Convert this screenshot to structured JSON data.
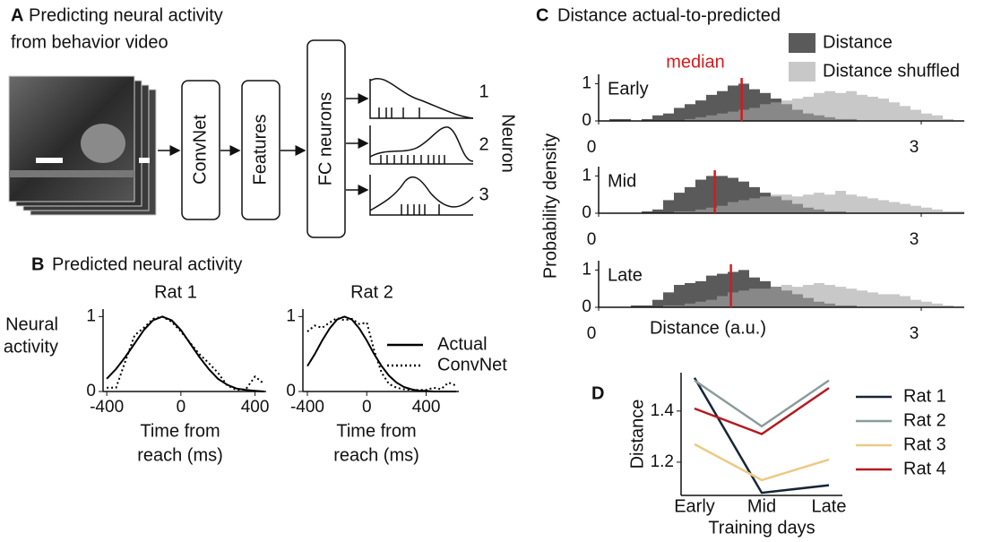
{
  "panel_a": {
    "letter": "A",
    "title": [
      "Predicting neural activity",
      "from behavior video"
    ],
    "boxes": [
      "ConvNet",
      "Features",
      "FC neurons"
    ],
    "outputs": [
      "1",
      "2",
      "3"
    ],
    "output_axis": "Neuron"
  },
  "panel_b": {
    "letter": "B",
    "title": "Predicted neural activity"
  },
  "panel_c": {
    "letter": "C",
    "title": "Distance actual-to-predicted",
    "y_label": "Probability density",
    "x_label": "Distance (a.u.)",
    "median_label": "median"
  },
  "panel_d": {
    "letter": "D"
  },
  "chart_data": [
    {
      "type": "line",
      "title": "Rat 1",
      "y_label": [
        "Neural",
        "activity"
      ],
      "x_label": [
        "Time from",
        "reach (ms)"
      ],
      "x": [
        -400,
        -350,
        -300,
        -250,
        -200,
        -150,
        -100,
        -50,
        0,
        50,
        100,
        150,
        200,
        250,
        300,
        350,
        400,
        450
      ],
      "series": [
        {
          "color": "#000000",
          "style": "solid",
          "values": [
            0.17,
            0.3,
            0.46,
            0.64,
            0.82,
            0.95,
            1.0,
            0.95,
            0.82,
            0.64,
            0.46,
            0.3,
            0.17,
            0.09,
            0.04,
            0.02,
            0.01,
            0.0
          ]
        },
        {
          "color": "#000000",
          "style": "dotted",
          "values": [
            0.05,
            0.05,
            0.4,
            0.75,
            0.85,
            0.97,
            1.0,
            0.93,
            0.8,
            0.65,
            0.5,
            0.38,
            0.25,
            0.08,
            0.02,
            0.03,
            0.2,
            0.1
          ]
        }
      ],
      "xlim": [
        -420,
        460
      ],
      "ylim": [
        0,
        1.1
      ],
      "xticks": [
        -400,
        0,
        400
      ],
      "yticks": [
        0,
        1
      ]
    },
    {
      "type": "line",
      "title": "Rat 2",
      "x_label": [
        "Time from",
        "reach (ms)"
      ],
      "x": [
        -400,
        -350,
        -300,
        -250,
        -200,
        -150,
        -100,
        -50,
        0,
        50,
        100,
        150,
        200,
        250,
        300,
        350,
        400,
        450,
        500,
        550,
        600
      ],
      "series": [
        {
          "name": "Actual",
          "color": "#000000",
          "style": "solid",
          "values": [
            0.34,
            0.5,
            0.68,
            0.84,
            0.96,
            1.0,
            0.96,
            0.84,
            0.68,
            0.5,
            0.34,
            0.21,
            0.12,
            0.06,
            0.03,
            0.01,
            0.01,
            0.0,
            0.0,
            0.0,
            0.0
          ]
        },
        {
          "name": "ConvNet",
          "color": "#000000",
          "style": "dotted",
          "values": [
            0.8,
            0.88,
            0.85,
            0.92,
            0.98,
            0.95,
            0.97,
            0.9,
            0.92,
            0.55,
            0.25,
            0.1,
            0.05,
            0.03,
            0.02,
            0.02,
            0.02,
            0.05,
            0.03,
            0.12,
            0.08
          ]
        }
      ],
      "xlim": [
        -430,
        620
      ],
      "ylim": [
        0,
        1.1
      ],
      "xticks": [
        -400,
        0,
        400
      ],
      "yticks": [
        0,
        1
      ]
    },
    {
      "type": "histogram",
      "label": "Early",
      "median": 1.33,
      "median_color": "#d7191c",
      "bins": [
        0,
        0.1,
        0.2,
        0.3,
        0.4,
        0.5,
        0.6,
        0.7,
        0.8,
        0.9,
        1,
        1.1,
        1.2,
        1.3,
        1.4,
        1.5,
        1.6,
        1.7,
        1.8,
        1.9,
        2,
        2.1,
        2.2,
        2.3,
        2.4,
        2.5,
        2.6,
        2.7,
        2.8,
        2.9,
        3,
        3.1,
        3.2,
        3.3,
        3.4
      ],
      "series": [
        {
          "name": "Distance",
          "color": "#5a5a5a",
          "values": [
            0,
            0.05,
            0.05,
            0,
            0.05,
            0.15,
            0.2,
            0.35,
            0.45,
            0.55,
            0.7,
            0.8,
            0.95,
            1.0,
            0.85,
            0.75,
            0.6,
            0.45,
            0.3,
            0.2,
            0.15,
            0.1,
            0.05,
            0.05,
            0,
            0,
            0,
            0,
            0,
            0,
            0,
            0,
            0,
            0
          ]
        },
        {
          "name": "Distance shuffled",
          "color": "#a5a5a5",
          "values": [
            0,
            0,
            0,
            0,
            0,
            0,
            0,
            0,
            0.05,
            0.1,
            0.15,
            0.2,
            0.25,
            0.3,
            0.35,
            0.45,
            0.5,
            0.55,
            0.6,
            0.65,
            0.75,
            0.8,
            0.75,
            0.8,
            0.7,
            0.65,
            0.6,
            0.5,
            0.4,
            0.3,
            0.2,
            0.15,
            0.05,
            0
          ]
        }
      ],
      "xlim": [
        0,
        3.4
      ],
      "ylim": [
        0,
        1.25
      ],
      "xticks": [
        0,
        3
      ],
      "yticks": [
        0,
        1
      ]
    },
    {
      "type": "histogram",
      "label": "Mid",
      "median": 1.08,
      "median_color": "#d7191c",
      "bins": [
        0,
        0.1,
        0.2,
        0.3,
        0.4,
        0.5,
        0.6,
        0.7,
        0.8,
        0.9,
        1,
        1.1,
        1.2,
        1.3,
        1.4,
        1.5,
        1.6,
        1.7,
        1.8,
        1.9,
        2,
        2.1,
        2.2,
        2.3,
        2.4,
        2.5,
        2.6,
        2.7,
        2.8,
        2.9,
        3,
        3.1,
        3.2,
        3.3,
        3.4
      ],
      "series": [
        {
          "color": "#5a5a5a",
          "values": [
            0,
            0,
            0,
            0,
            0.05,
            0.1,
            0.35,
            0.55,
            0.7,
            0.9,
            1.0,
            1.0,
            0.95,
            0.85,
            0.7,
            0.55,
            0.45,
            0.35,
            0.25,
            0.15,
            0.1,
            0.05,
            0.05,
            0,
            0,
            0,
            0,
            0,
            0,
            0,
            0,
            0,
            0,
            0
          ]
        },
        {
          "color": "#a5a5a5",
          "values": [
            0,
            0,
            0,
            0,
            0,
            0,
            0,
            0.05,
            0.05,
            0.1,
            0.15,
            0.2,
            0.3,
            0.35,
            0.4,
            0.45,
            0.5,
            0.5,
            0.45,
            0.5,
            0.55,
            0.5,
            0.6,
            0.5,
            0.45,
            0.4,
            0.35,
            0.3,
            0.25,
            0.2,
            0.15,
            0.1,
            0.05,
            0.05
          ]
        }
      ],
      "xlim": [
        0,
        3.4
      ],
      "ylim": [
        0,
        1.25
      ],
      "xticks": [
        0,
        3
      ],
      "yticks": [
        0,
        1
      ]
    },
    {
      "type": "histogram",
      "label": "Late",
      "median": 1.23,
      "median_color": "#d7191c",
      "bins": [
        0,
        0.1,
        0.2,
        0.3,
        0.4,
        0.5,
        0.6,
        0.7,
        0.8,
        0.9,
        1,
        1.1,
        1.2,
        1.3,
        1.4,
        1.5,
        1.6,
        1.7,
        1.8,
        1.9,
        2,
        2.1,
        2.2,
        2.3,
        2.4,
        2.5,
        2.6,
        2.7,
        2.8,
        2.9,
        3,
        3.1,
        3.2,
        3.3,
        3.4
      ],
      "series": [
        {
          "color": "#5a5a5a",
          "values": [
            0,
            0,
            0,
            0.05,
            0.05,
            0.2,
            0.4,
            0.6,
            0.65,
            0.7,
            0.85,
            0.9,
            0.95,
            1.0,
            0.8,
            0.7,
            0.55,
            0.45,
            0.35,
            0.25,
            0.15,
            0.1,
            0.05,
            0.05,
            0,
            0,
            0,
            0,
            0,
            0,
            0,
            0,
            0,
            0
          ]
        },
        {
          "color": "#a5a5a5",
          "values": [
            0,
            0,
            0,
            0,
            0,
            0,
            0.05,
            0.05,
            0.1,
            0.15,
            0.2,
            0.3,
            0.4,
            0.45,
            0.5,
            0.5,
            0.55,
            0.6,
            0.55,
            0.6,
            0.65,
            0.6,
            0.55,
            0.5,
            0.45,
            0.4,
            0.35,
            0.35,
            0.3,
            0.2,
            0.15,
            0.1,
            0.05,
            0
          ]
        }
      ],
      "xlim": [
        0,
        3.4
      ],
      "ylim": [
        0,
        1.25
      ],
      "xticks": [
        0,
        3
      ],
      "yticks": [
        0,
        1
      ]
    },
    {
      "type": "line",
      "y_label": "Distance",
      "x_label": "Training days",
      "categories": [
        "Early",
        "Mid",
        "Late"
      ],
      "series": [
        {
          "name": "Rat 1",
          "color": "#172535",
          "values": [
            1.53,
            1.08,
            1.11
          ]
        },
        {
          "name": "Rat 2",
          "color": "#8a9c9a",
          "values": [
            1.52,
            1.34,
            1.52
          ]
        },
        {
          "name": "Rat 3",
          "color": "#ecca85",
          "values": [
            1.27,
            1.13,
            1.21
          ]
        },
        {
          "name": "Rat 4",
          "color": "#b5191e",
          "values": [
            1.41,
            1.31,
            1.49
          ]
        }
      ],
      "ylim": [
        1.07,
        1.55
      ],
      "yticks": [
        1.2,
        1.4
      ]
    }
  ]
}
